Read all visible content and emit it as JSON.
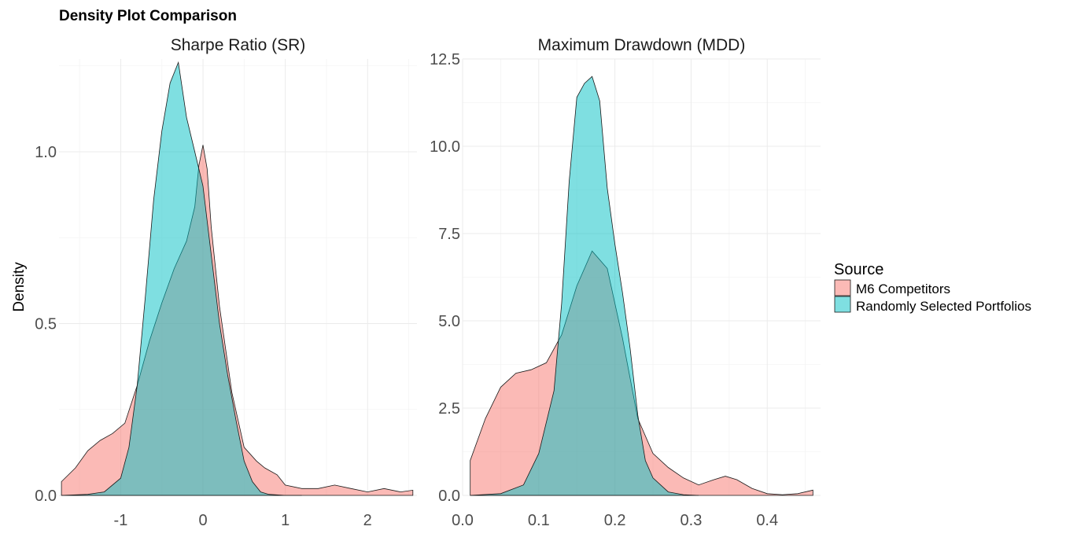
{
  "title": "Density Plot Comparison",
  "ylabel": "Density",
  "colors": {
    "m6": "#F8766D",
    "random": "#00BFC4"
  },
  "legend": {
    "title": "Source",
    "items": [
      {
        "label": "M6 Competitors",
        "color": "#F8766D"
      },
      {
        "label": "Randomly Selected Portfolios",
        "color": "#00BFC4"
      }
    ]
  },
  "chart_data": [
    {
      "type": "area",
      "title": "Sharpe Ratio (SR)",
      "xlabel": "",
      "ylabel": "Density",
      "xlim": [
        -1.75,
        2.6
      ],
      "ylim": [
        0,
        1.27
      ],
      "xticks": [
        -1,
        0,
        1,
        2
      ],
      "yticks": [
        0.0,
        0.5,
        1.0
      ],
      "ytick_labels": [
        "0.0",
        "0.5",
        "1.0"
      ],
      "grid": true,
      "series": [
        {
          "name": "M6 Competitors",
          "x": [
            -1.72,
            -1.55,
            -1.4,
            -1.25,
            -1.1,
            -0.95,
            -0.8,
            -0.65,
            -0.5,
            -0.35,
            -0.2,
            -0.1,
            -0.05,
            0.0,
            0.05,
            0.1,
            0.2,
            0.35,
            0.5,
            0.65,
            0.75,
            0.9,
            1.0,
            1.2,
            1.4,
            1.6,
            1.8,
            2.0,
            2.2,
            2.4,
            2.55
          ],
          "y": [
            0.04,
            0.08,
            0.13,
            0.16,
            0.18,
            0.21,
            0.32,
            0.45,
            0.56,
            0.66,
            0.74,
            0.84,
            0.96,
            1.02,
            0.95,
            0.78,
            0.55,
            0.3,
            0.14,
            0.1,
            0.08,
            0.06,
            0.03,
            0.02,
            0.02,
            0.03,
            0.02,
            0.01,
            0.02,
            0.01,
            0.015
          ]
        },
        {
          "name": "Randomly Selected Portfolios",
          "x": [
            -1.72,
            -1.4,
            -1.2,
            -1.0,
            -0.9,
            -0.8,
            -0.7,
            -0.6,
            -0.5,
            -0.4,
            -0.3,
            -0.25,
            -0.2,
            -0.1,
            0.0,
            0.1,
            0.2,
            0.3,
            0.4,
            0.5,
            0.6,
            0.7,
            0.8,
            1.0,
            1.2
          ],
          "y": [
            0.0,
            0.003,
            0.01,
            0.05,
            0.14,
            0.32,
            0.58,
            0.86,
            1.06,
            1.2,
            1.26,
            1.18,
            1.1,
            1.0,
            0.9,
            0.7,
            0.5,
            0.35,
            0.22,
            0.1,
            0.04,
            0.01,
            0.003,
            0.0,
            0.0
          ]
        }
      ]
    },
    {
      "type": "area",
      "title": "Maximum Drawdown (MDD)",
      "xlabel": "",
      "ylabel": "",
      "xlim": [
        0.0,
        0.47
      ],
      "ylim": [
        0,
        12.5
      ],
      "xticks": [
        0.0,
        0.1,
        0.2,
        0.3,
        0.4
      ],
      "xtick_labels": [
        "0.0",
        "0.1",
        "0.2",
        "0.3",
        "0.4"
      ],
      "yticks": [
        0.0,
        2.5,
        5.0,
        7.5,
        10.0,
        12.5
      ],
      "ytick_labels": [
        "0.0",
        "2.5",
        "5.0",
        "7.5",
        "10.0",
        "12.5"
      ],
      "grid": true,
      "series": [
        {
          "name": "M6 Competitors",
          "x": [
            0.01,
            0.03,
            0.05,
            0.07,
            0.09,
            0.11,
            0.13,
            0.15,
            0.17,
            0.19,
            0.21,
            0.23,
            0.25,
            0.27,
            0.29,
            0.31,
            0.33,
            0.345,
            0.36,
            0.38,
            0.4,
            0.42,
            0.44,
            0.46
          ],
          "y": [
            1.0,
            2.2,
            3.1,
            3.5,
            3.6,
            3.8,
            4.6,
            6.0,
            7.0,
            6.5,
            4.5,
            2.2,
            1.2,
            0.8,
            0.5,
            0.3,
            0.45,
            0.55,
            0.45,
            0.2,
            0.05,
            0.02,
            0.05,
            0.15
          ]
        },
        {
          "name": "Randomly Selected Portfolios",
          "x": [
            0.01,
            0.05,
            0.08,
            0.1,
            0.12,
            0.13,
            0.14,
            0.15,
            0.16,
            0.17,
            0.18,
            0.19,
            0.2,
            0.21,
            0.22,
            0.23,
            0.24,
            0.25,
            0.27,
            0.29,
            0.31
          ],
          "y": [
            0.0,
            0.05,
            0.3,
            1.2,
            3.0,
            5.5,
            9.0,
            11.4,
            11.8,
            12.0,
            11.3,
            8.8,
            7.2,
            5.8,
            4.2,
            2.3,
            1.0,
            0.5,
            0.1,
            0.02,
            0.0
          ]
        }
      ]
    }
  ]
}
